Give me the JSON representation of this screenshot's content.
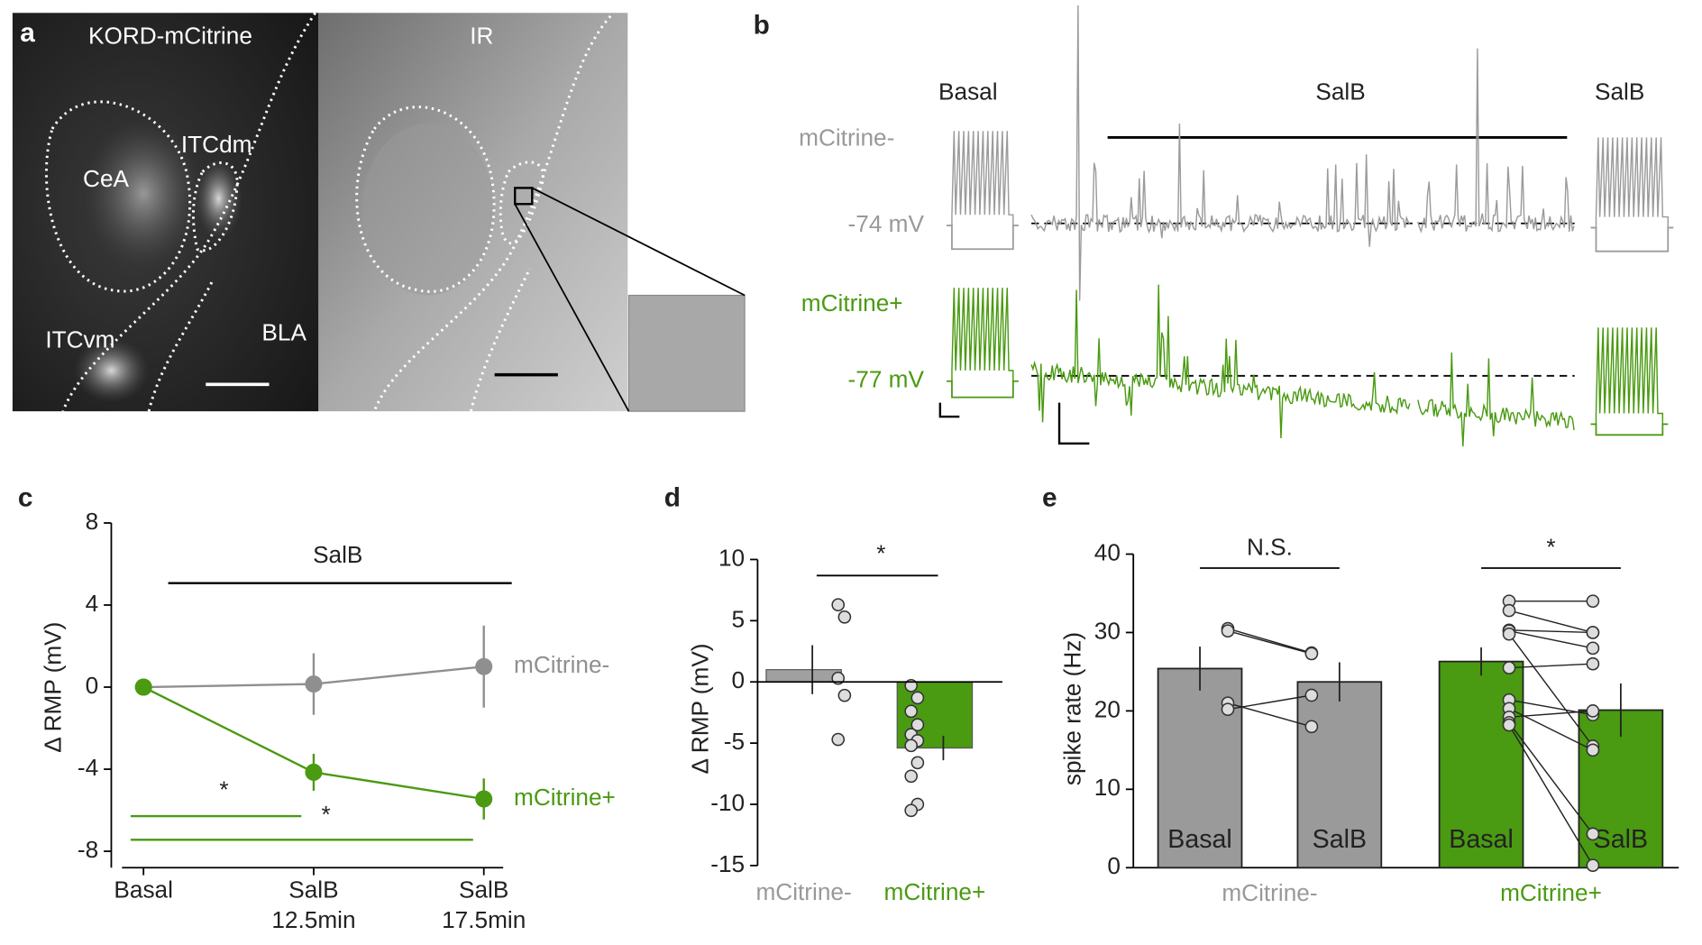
{
  "panels": {
    "a": {
      "label": "a",
      "left_image": "KORD-mCitrine",
      "right_image": "IR",
      "regions": [
        "CeA",
        "ITCdm",
        "ITCvm",
        "BLA"
      ]
    },
    "b": {
      "label": "b",
      "conditions": [
        "Basal",
        "SalB",
        "SalB"
      ],
      "cells": [
        {
          "name": "mCitrine-",
          "rmp": "-74 mV"
        },
        {
          "name": "mCitrine+",
          "rmp": "-77 mV"
        }
      ]
    }
  },
  "chart_data": [
    {
      "type": "line",
      "label": "c",
      "ylabel": "Δ RMP (mV)",
      "treatment": "SalB",
      "significance": [
        "*",
        "*"
      ],
      "categories": [
        "Basal",
        "SalB 12.5min",
        "SalB 17.5min"
      ],
      "series": [
        {
          "name": "mCitrine-",
          "color": "#8f8f8f",
          "values": [
            0,
            0.15,
            1.0
          ],
          "errors": [
            0,
            1.5,
            2.0
          ]
        },
        {
          "name": "mCitrine+",
          "color": "#4a9a12",
          "values": [
            0,
            -4.15,
            -5.45
          ],
          "errors": [
            0,
            0.9,
            1.0
          ]
        }
      ],
      "ylim": [
        -8.8,
        8
      ],
      "yticks": [
        -8,
        -4,
        0,
        4,
        8
      ]
    },
    {
      "type": "bar",
      "label": "d",
      "ylabel": "Δ RMP (mV)",
      "significance": "*",
      "categories": [
        "mCitrine-",
        "mCitrine+"
      ],
      "colors": [
        "#a0a0a0",
        "#4a9a12"
      ],
      "values": [
        1.0,
        -5.4
      ],
      "errors": [
        2.0,
        1.0
      ],
      "points": [
        [
          6.3,
          5.3,
          0.3,
          -1.1,
          -4.7
        ],
        [
          -0.3,
          -1.3,
          -2.4,
          -3.5,
          -4.3,
          -4.8,
          -5.2,
          -6.6,
          -7.7,
          -10.0,
          -10.5
        ]
      ],
      "ylim": [
        -15,
        10
      ],
      "yticks": [
        -15,
        -10,
        -5,
        0,
        5,
        10
      ]
    },
    {
      "type": "bar",
      "label": "e",
      "ylabel": "spike rate (Hz)",
      "significance": [
        "N.S.",
        "*"
      ],
      "bar_labels": [
        "Basal",
        "SalB"
      ],
      "series": [
        {
          "name": "mCitrine-",
          "color": "#9a9a9a",
          "values": [
            25.4,
            23.7
          ],
          "errors": [
            2.8,
            2.5
          ],
          "points": [
            [
              30.5,
              30.2,
              21.0,
              20.2
            ],
            [
              27.4,
              27.3,
              18.0,
              22.0
            ]
          ]
        },
        {
          "name": "mCitrine+",
          "color": "#4a9a12",
          "values": [
            26.3,
            20.1
          ],
          "errors": [
            1.8,
            3.4
          ],
          "points": [
            [
              34,
              32.8,
              30.3,
              30.2,
              29.8,
              25.5,
              21.4,
              20.3,
              19.2,
              18.5,
              18.2
            ],
            [
              34,
              30,
              30,
              28,
              15.5,
              26,
              19.5,
              15,
              20,
              4.3,
              0.3
            ]
          ]
        }
      ],
      "ylim": [
        0,
        40
      ],
      "yticks": [
        0,
        10,
        20,
        30,
        40
      ]
    }
  ]
}
